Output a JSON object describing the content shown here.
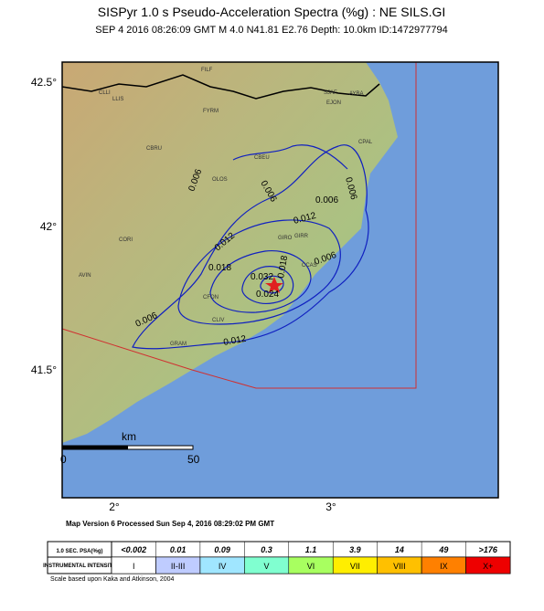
{
  "header": {
    "title": "SISPyr 1.0 s Pseudo-Acceleration Spectra (%g) : NE SILS.GI",
    "subtitle": "SEP 4 2016 08:26:09  GMT    M 4.0    N41.81 E2.76    Depth: 10.0km    ID:1472977794"
  },
  "map": {
    "lat_labels": [
      "42.5°",
      "42°",
      "41.5°"
    ],
    "lon_labels": [
      "2°",
      "3°"
    ],
    "towns": [
      "FILF",
      "CLLI",
      "LLIS",
      "SJAF",
      "AYBA",
      "EJON",
      "FYRM",
      "CBRU",
      "CPAL",
      "CBEU",
      "OLOS",
      "CORI",
      "GIRO",
      "GIRR",
      "CCAS",
      "AVIN",
      "CFON",
      "CLIV",
      "GRAM"
    ],
    "contour_labels": [
      "0.006",
      "0.006",
      "0.006",
      "0.006",
      "0.012",
      "0.012",
      "0.018",
      "0.018",
      "0.024",
      "0.032",
      "0.006",
      "0.012",
      "0.006"
    ],
    "scale": {
      "unit": "km",
      "start": "0",
      "end": "50"
    }
  },
  "footer": "Map Version 6 Processed Sun Sep  4, 2016 08:29:02 PM GMT",
  "legend": {
    "row1_header": "1.0 SEC. PSA(%g)",
    "row1": [
      "<0.002",
      "0.01",
      "0.09",
      "0.3",
      "1.1",
      "3.9",
      "14",
      "49",
      ">176"
    ],
    "row2_header": "INSTRUMENTAL INTENSITY",
    "row2": [
      "I",
      "II-III",
      "IV",
      "V",
      "VI",
      "VII",
      "VIII",
      "IX",
      "X+"
    ],
    "colors": [
      "#ffffff",
      "#bfccff",
      "#a0e6ff",
      "#80ffd0",
      "#a8ff60",
      "#ffee00",
      "#ffc000",
      "#ff8000",
      "#ee0000"
    ],
    "note": "Scale based upon Kaka and Atkinson, 2004"
  }
}
